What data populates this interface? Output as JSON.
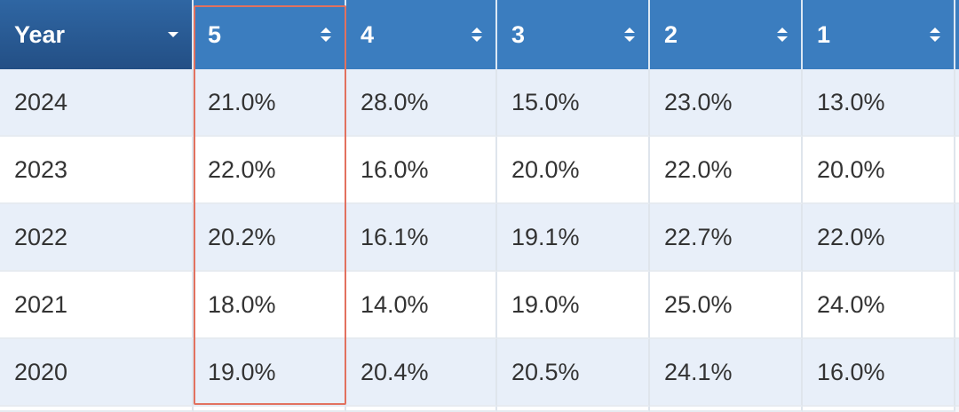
{
  "table": {
    "columns": [
      "Year",
      "5",
      "4",
      "3",
      "2",
      "1"
    ],
    "rows": [
      [
        "2024",
        "21.0%",
        "28.0%",
        "15.0%",
        "23.0%",
        "13.0%"
      ],
      [
        "2023",
        "22.0%",
        "16.0%",
        "20.0%",
        "22.0%",
        "20.0%"
      ],
      [
        "2022",
        "20.2%",
        "16.1%",
        "19.1%",
        "22.7%",
        "22.0%"
      ],
      [
        "2021",
        "18.0%",
        "14.0%",
        "19.0%",
        "25.0%",
        "24.0%"
      ],
      [
        "2020",
        "19.0%",
        "20.4%",
        "20.5%",
        "24.1%",
        "16.0%"
      ]
    ]
  }
}
